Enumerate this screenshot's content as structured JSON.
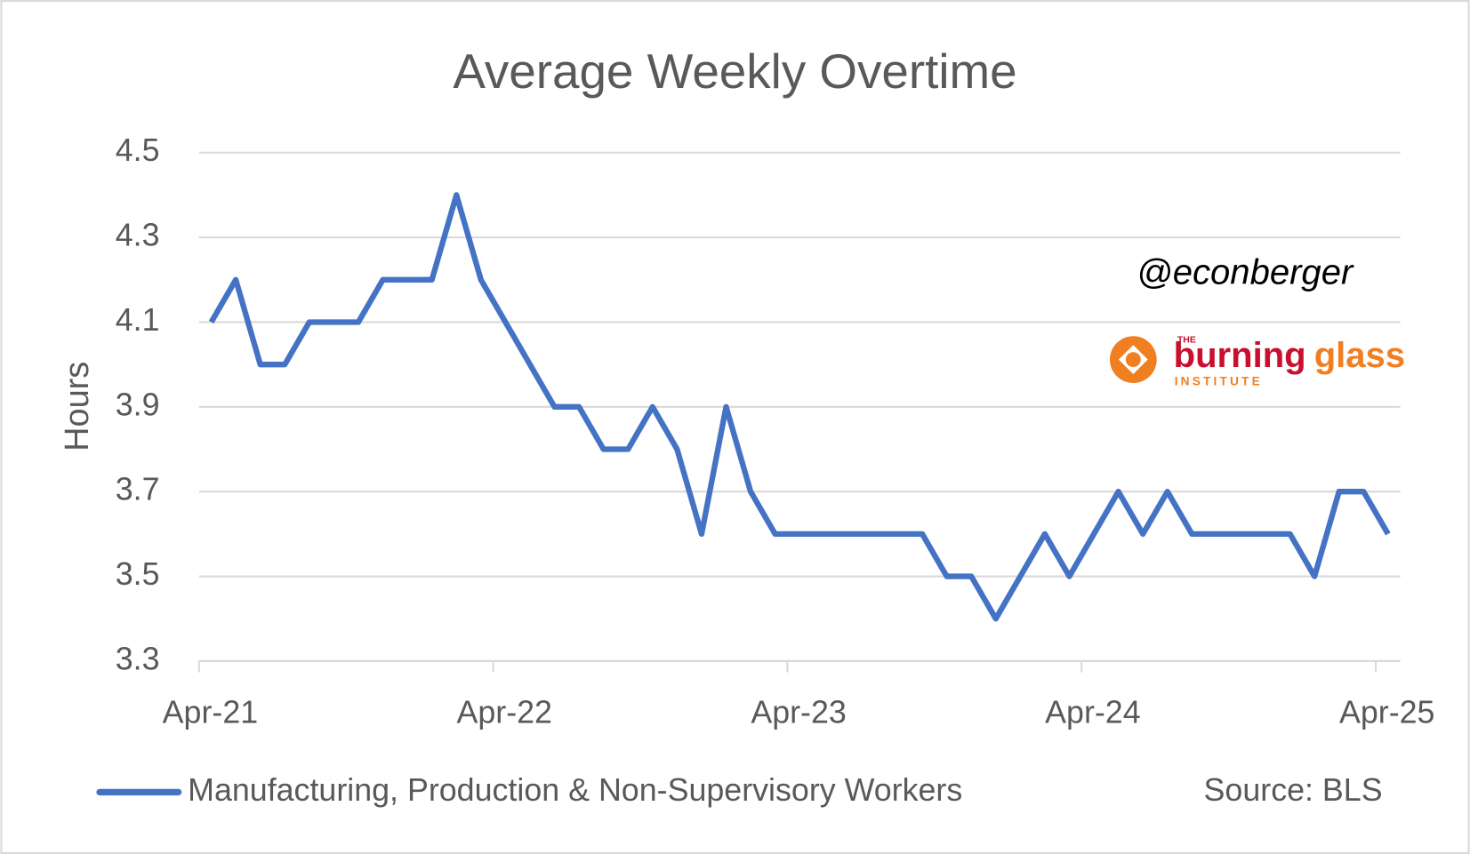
{
  "chart_data": {
    "type": "line",
    "title": "Average Weekly Overtime",
    "y_label": "Hours",
    "source": "Source: BLS",
    "annotations": [
      "@econberger",
      "THE",
      "burning",
      "glass",
      "INSTITUTE"
    ],
    "categories": [
      "Apr-21",
      null,
      null,
      null,
      null,
      null,
      null,
      null,
      null,
      null,
      null,
      null,
      "Apr-22",
      null,
      null,
      null,
      null,
      null,
      null,
      null,
      null,
      null,
      null,
      null,
      "Apr-23",
      null,
      null,
      null,
      null,
      null,
      null,
      null,
      null,
      null,
      null,
      null,
      "Apr-24",
      null,
      null,
      null,
      null,
      null,
      null,
      null,
      null,
      null,
      null,
      null,
      "Apr-25"
    ],
    "series": [
      {
        "name": "Manufacturing, Production & Non-Supervisory Workers",
        "color": "#4472c4",
        "values": [
          4.1,
          4.2,
          4.0,
          4.0,
          4.1,
          4.1,
          4.1,
          4.2,
          4.2,
          4.2,
          4.4,
          4.2,
          4.1,
          4.0,
          3.9,
          3.9,
          3.8,
          3.8,
          3.9,
          3.8,
          3.6,
          3.9,
          3.7,
          3.6,
          3.6,
          3.6,
          3.6,
          3.6,
          3.6,
          3.6,
          3.5,
          3.5,
          3.4,
          3.5,
          3.6,
          3.5,
          3.6,
          3.7,
          3.6,
          3.7,
          3.6,
          3.6,
          3.6,
          3.6,
          3.6,
          3.5,
          3.7,
          3.7,
          3.6
        ]
      }
    ],
    "ylim": [
      3.3,
      4.5
    ],
    "yticks": [
      3.3,
      3.5,
      3.7,
      3.9,
      4.1,
      4.3,
      4.5
    ],
    "grid": true,
    "legend": "bottom-left"
  }
}
